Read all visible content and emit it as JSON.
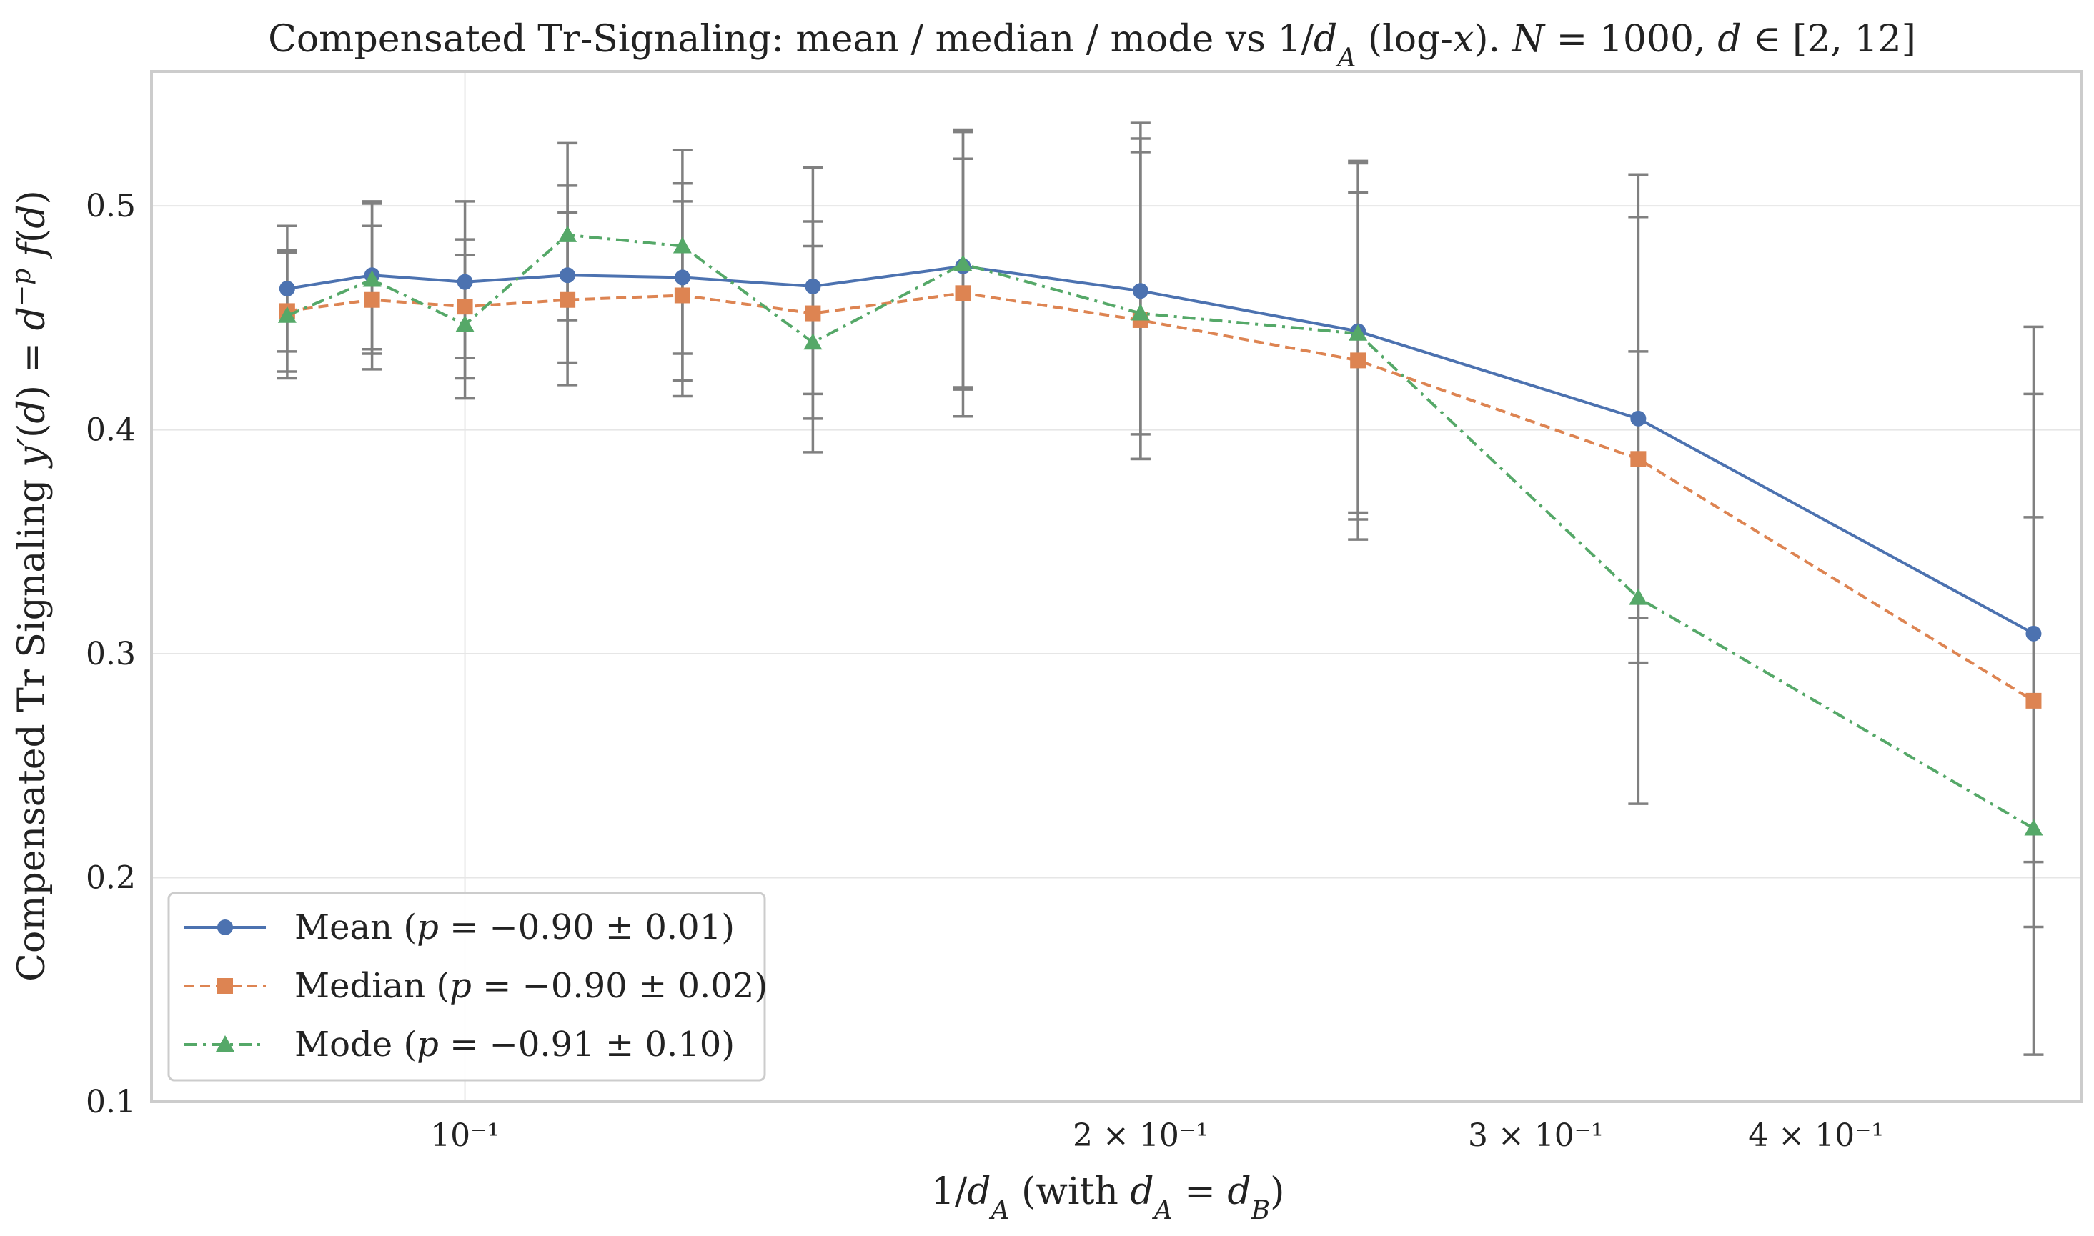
{
  "chart_data": {
    "type": "line",
    "title": "Compensated Tr-Signaling: mean / median / mode vs 1/d_A (log-x). N = 1000, d ∈ [2, 12]",
    "xlabel": "1/d_A (with d_A = d_B)",
    "ylabel": "Compensated Tr Signaling y′(d) = d^{−p} f(d)",
    "xscale": "log",
    "xlim": [
      0.0725,
      0.525
    ],
    "ylim": [
      0.1,
      0.56
    ],
    "xticks": [
      {
        "value": 0.1,
        "label": "10⁻¹"
      },
      {
        "value": 0.2,
        "label": "2 × 10⁻¹"
      },
      {
        "value": 0.3,
        "label": "3 × 10⁻¹"
      },
      {
        "value": 0.4,
        "label": "4 × 10⁻¹"
      }
    ],
    "yticks": [
      {
        "value": 0.1,
        "label": "0.1"
      },
      {
        "value": 0.2,
        "label": "0.2"
      },
      {
        "value": 0.3,
        "label": "0.3"
      },
      {
        "value": 0.4,
        "label": "0.4"
      },
      {
        "value": 0.5,
        "label": "0.5"
      }
    ],
    "grid": true,
    "legend_position": "bottom-left",
    "x": [
      0.08333,
      0.09091,
      0.1,
      0.1111,
      0.125,
      0.1429,
      0.1667,
      0.2,
      0.25,
      0.3333,
      0.5
    ],
    "series": [
      {
        "name": "Mean (p = −0.90 ± 0.01)",
        "color": "#4c72b0",
        "dash": "solid",
        "marker": "circle",
        "values": [
          0.463,
          0.469,
          0.466,
          0.469,
          0.468,
          0.464,
          0.473,
          0.462,
          0.444,
          0.405,
          0.309
        ],
        "err_low": [
          0.426,
          0.436,
          0.432,
          0.43,
          0.422,
          0.416,
          0.419,
          0.398,
          0.363,
          0.316,
          0.207
        ],
        "err_high": [
          0.48,
          0.502,
          0.502,
          0.528,
          0.525,
          0.517,
          0.533,
          0.537,
          0.52,
          0.514,
          0.446
        ]
      },
      {
        "name": "Median (p = −0.90 ± 0.02)",
        "color": "#dd8452",
        "dash": "dashed",
        "marker": "square",
        "values": [
          0.453,
          0.458,
          0.455,
          0.458,
          0.46,
          0.452,
          0.461,
          0.449,
          0.431,
          0.387,
          0.279
        ],
        "err_low": [
          0.423,
          0.427,
          0.414,
          0.42,
          0.415,
          0.39,
          0.406,
          0.387,
          0.351,
          0.233,
          0.121
        ],
        "err_high": [
          0.479,
          0.491,
          0.485,
          0.497,
          0.502,
          0.493,
          0.521,
          0.524,
          0.506,
          0.435,
          0.361
        ]
      },
      {
        "name": "Mode (p = −0.91 ± 0.10)",
        "color": "#55a868",
        "dash": "dashdot",
        "marker": "triangle",
        "values": [
          0.451,
          0.467,
          0.447,
          0.487,
          0.482,
          0.439,
          0.474,
          0.452,
          0.443,
          0.325,
          0.222
        ],
        "err_low": [
          0.435,
          0.434,
          0.423,
          0.449,
          0.434,
          0.405,
          0.418,
          0.387,
          0.36,
          0.296,
          0.178
        ],
        "err_high": [
          0.491,
          0.501,
          0.478,
          0.509,
          0.51,
          0.482,
          0.534,
          0.53,
          0.519,
          0.495,
          0.416
        ]
      }
    ]
  }
}
